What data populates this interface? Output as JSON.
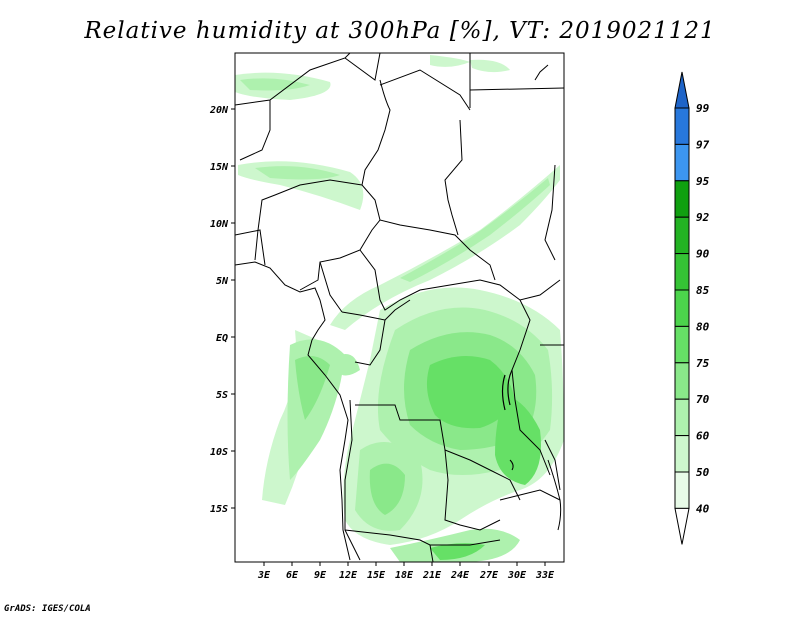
{
  "title": "Relative humidity at 300hPa [%], VT: 2019021121",
  "footer": "GrADS: IGES/COLA",
  "map": {
    "lat_labels": [
      "20N",
      "15N",
      "10N",
      "5N",
      "EQ",
      "5S",
      "10S",
      "15S"
    ],
    "lon_labels": [
      "3E",
      "6E",
      "9E",
      "12E",
      "15E",
      "18E",
      "21E",
      "24E",
      "27E",
      "30E",
      "33E"
    ]
  },
  "legend": {
    "levels": [
      {
        "label": "99",
        "color": "#1e64c8"
      },
      {
        "label": "97",
        "color": "#2878dc"
      },
      {
        "label": "95",
        "color": "#3c96f0"
      },
      {
        "label": "92",
        "color": "#10a010"
      },
      {
        "label": "90",
        "color": "#23b323"
      },
      {
        "label": "85",
        "color": "#35c335"
      },
      {
        "label": "80",
        "color": "#4cd44c"
      },
      {
        "label": "75",
        "color": "#66e066"
      },
      {
        "label": "70",
        "color": "#8ae88a"
      },
      {
        "label": "60",
        "color": "#aef1ae"
      },
      {
        "label": "50",
        "color": "#cdf7cd"
      },
      {
        "label": "40",
        "color": "#e8fbe8"
      }
    ]
  }
}
